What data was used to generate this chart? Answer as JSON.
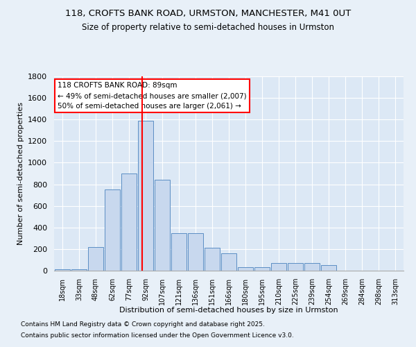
{
  "title1": "118, CROFTS BANK ROAD, URMSTON, MANCHESTER, M41 0UT",
  "title2": "Size of property relative to semi-detached houses in Urmston",
  "xlabel": "Distribution of semi-detached houses by size in Urmston",
  "ylabel": "Number of semi-detached properties",
  "categories": [
    "18sqm",
    "33sqm",
    "48sqm",
    "62sqm",
    "77sqm",
    "92sqm",
    "107sqm",
    "121sqm",
    "136sqm",
    "151sqm",
    "166sqm",
    "180sqm",
    "195sqm",
    "210sqm",
    "225sqm",
    "239sqm",
    "254sqm",
    "269sqm",
    "284sqm",
    "298sqm",
    "313sqm"
  ],
  "values": [
    10,
    10,
    220,
    750,
    900,
    1390,
    840,
    350,
    350,
    215,
    160,
    35,
    35,
    70,
    70,
    70,
    50,
    0,
    0,
    0,
    0
  ],
  "bar_color": "#c8d8ee",
  "bar_edge_color": "#5b8ec4",
  "annotation_line1": "118 CROFTS BANK ROAD: 89sqm",
  "annotation_line2": "← 49% of semi-detached houses are smaller (2,007)",
  "annotation_line3": "50% of semi-detached houses are larger (2,061) →",
  "ylim": [
    0,
    1800
  ],
  "yticks": [
    0,
    200,
    400,
    600,
    800,
    1000,
    1200,
    1400,
    1600,
    1800
  ],
  "footer1": "Contains HM Land Registry data © Crown copyright and database right 2025.",
  "footer2": "Contains public sector information licensed under the Open Government Licence v3.0.",
  "bg_color": "#dce8f5",
  "plot_bg_color": "#dce8f5",
  "outer_bg_color": "#e8f0f8"
}
